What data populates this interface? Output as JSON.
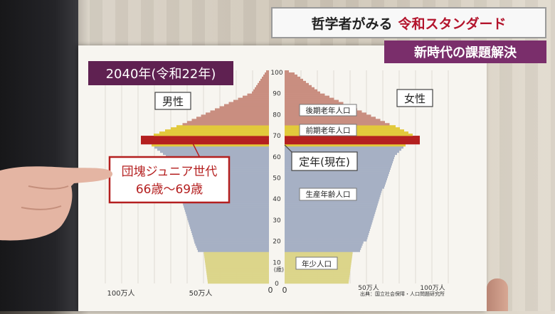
{
  "banner": {
    "title_prefix": "哲学者がみる",
    "title_accent": "令和スタンダード",
    "subtitle": "新時代の課題解決"
  },
  "board": {
    "year_label": "2040年(令和22年)",
    "male_label": "男性",
    "female_label": "女性",
    "late_elderly_label": "後期老年人口",
    "early_elderly_label": "前期老年人口",
    "retirement_label": "定年(現在)",
    "working_age_label": "生産年齢人口",
    "youth_label": "年少人口",
    "baby_boom_line1": "団塊ジュニア世代",
    "baby_boom_line2": "66歳〜69歳",
    "source": "出典：国立社会保障・人口問題研究所",
    "age_unit": "(歳)",
    "age_ticks": [
      "100",
      "90",
      "80",
      "70",
      "60",
      "50",
      "40",
      "30",
      "20",
      "10",
      "0"
    ],
    "x_ticks_left": [
      "100万人",
      "50万人",
      "0"
    ],
    "x_ticks_right": [
      "0",
      "50万人",
      "100万人"
    ]
  },
  "colors": {
    "late_elderly": "#c98e80",
    "early_elderly": "#e2c93b",
    "working_age": "#a6b0c4",
    "youth": "#dcd58a",
    "baby_boom_band": "#b41f1f",
    "banner_accent": "#b3142c",
    "subtitle_bg": "#7a2e6b"
  }
}
